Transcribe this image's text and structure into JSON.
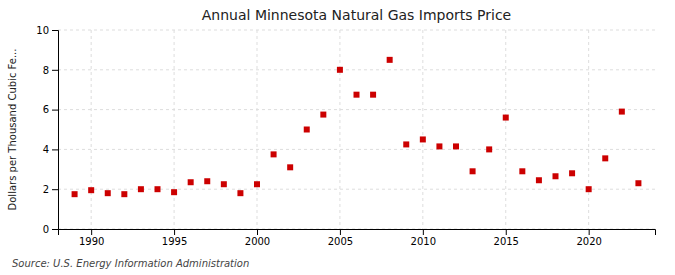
{
  "chart_data": {
    "type": "scatter",
    "title": "Annual Minnesota Natural Gas Imports Price",
    "ylabel": "Dollars per Thousand Cubic Fe...",
    "annotations": [
      "Source: U.S. Energy Information Administration"
    ],
    "x": [
      1989,
      1990,
      1991,
      1992,
      1993,
      1994,
      1995,
      1996,
      1997,
      1998,
      1999,
      2000,
      2001,
      2002,
      2003,
      2004,
      2005,
      2006,
      2007,
      2008,
      2009,
      2010,
      2011,
      2012,
      2013,
      2014,
      2015,
      2016,
      2017,
      2018,
      2019,
      2020,
      2021,
      2022,
      2023
    ],
    "values": [
      1.75,
      1.95,
      1.8,
      1.75,
      2.0,
      2.0,
      1.85,
      2.35,
      2.4,
      2.25,
      1.8,
      2.25,
      3.75,
      3.1,
      5.0,
      5.75,
      8.0,
      6.75,
      6.75,
      8.5,
      4.25,
      4.5,
      4.15,
      4.15,
      2.9,
      4.0,
      5.6,
      2.9,
      2.45,
      2.65,
      2.8,
      2.0,
      3.55,
      5.9,
      2.3
    ],
    "color": "#cc0000",
    "marker": "square",
    "xlim": [
      1988,
      2024
    ],
    "ylim": [
      0,
      10
    ],
    "xticks": [
      1990,
      1995,
      2000,
      2005,
      2010,
      2015,
      2020
    ],
    "yticks": [
      0,
      2,
      4,
      6,
      8,
      10
    ],
    "grid": true
  }
}
